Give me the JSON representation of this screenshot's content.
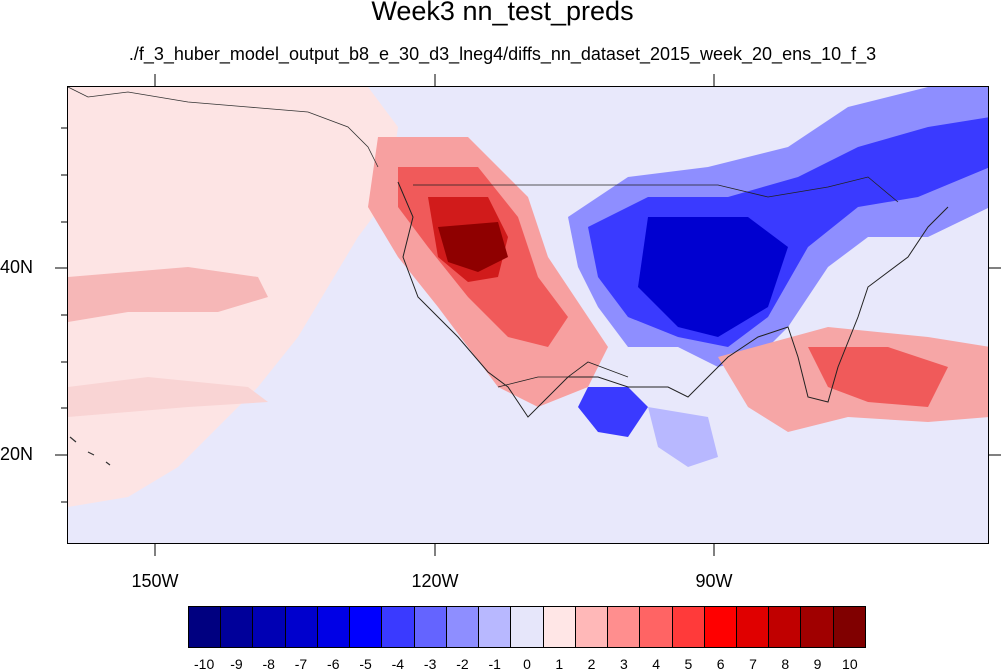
{
  "title": "Week3 nn_test_preds",
  "subtitle": "./f_3_huber_model_output_b8_e_30_d3_lneg4/diffs_nn_dataset_2015_week_20_ens_10_f_3",
  "map": {
    "lat_labels": [
      "40N",
      "20N"
    ],
    "lon_labels": [
      "150W",
      "120W",
      "90W"
    ]
  },
  "colorbar": {
    "labels": [
      "-10",
      "-9",
      "-8",
      "-7",
      "-6",
      "-5",
      "-4",
      "-3",
      "-2",
      "-1",
      "0",
      "1",
      "2",
      "3",
      "4",
      "5",
      "6",
      "7",
      "8",
      "9",
      "10"
    ],
    "colors": [
      "#000080",
      "#00009a",
      "#0000b4",
      "#0000cd",
      "#0000e6",
      "#0000ff",
      "#3a3aff",
      "#6464ff",
      "#8e8eff",
      "#b8b8ff",
      "#e6e6fa",
      "#ffe6e6",
      "#ffb8b8",
      "#ff8e8e",
      "#ff6464",
      "#ff3a3a",
      "#ff0000",
      "#e00000",
      "#c00000",
      "#a00000",
      "#800000"
    ]
  }
}
